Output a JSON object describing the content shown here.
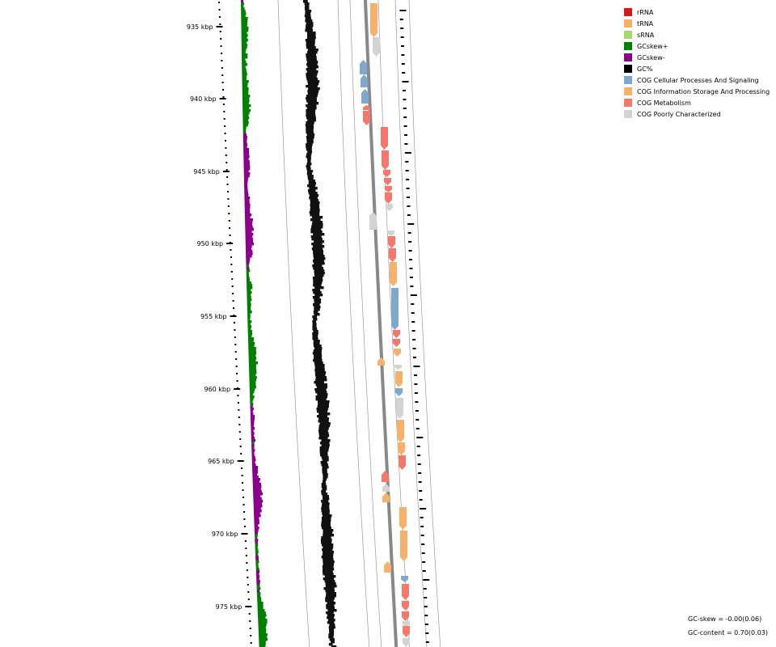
{
  "ruler": {
    "labels": [
      "935 kbp",
      "940 kbp",
      "945 kbp",
      "950 kbp",
      "955 kbp",
      "960 kbp",
      "965 kbp",
      "970 kbp",
      "975 kbp"
    ]
  },
  "legend": {
    "items": [
      {
        "label": "rRNA",
        "color": "#d7191c"
      },
      {
        "label": "tRNA",
        "color": "#fdae61"
      },
      {
        "label": "sRNA",
        "color": "#a6d96a"
      },
      {
        "label": "GCskew+",
        "color": "#008000"
      },
      {
        "label": "GCskew-",
        "color": "#8b008b"
      },
      {
        "label": "GC%",
        "color": "#000000"
      },
      {
        "label": "COG Cellular Processes And Signaling",
        "color": "#7fa8cf"
      },
      {
        "label": "COG Information Storage And Processing",
        "color": "#f6b26b"
      },
      {
        "label": "COG Metabolism",
        "color": "#f4796c"
      },
      {
        "label": "COG Poorly Characterized",
        "color": "#d3d3d3"
      }
    ]
  },
  "stats": {
    "gc_skew": "GC-skew = -0.00(0.06)",
    "gc_content": "GC-content = 0.70(0.03)"
  },
  "colors": {
    "skew_pos": "#008000",
    "skew_neg": "#8b008b",
    "gc": "#111111",
    "cog_cell": "#7fa8cf",
    "cog_info": "#f6b26b",
    "cog_meta": "#f4796c",
    "cog_poor": "#d3d3d3",
    "trna": "#fdae61",
    "backbone": "#888888"
  }
}
